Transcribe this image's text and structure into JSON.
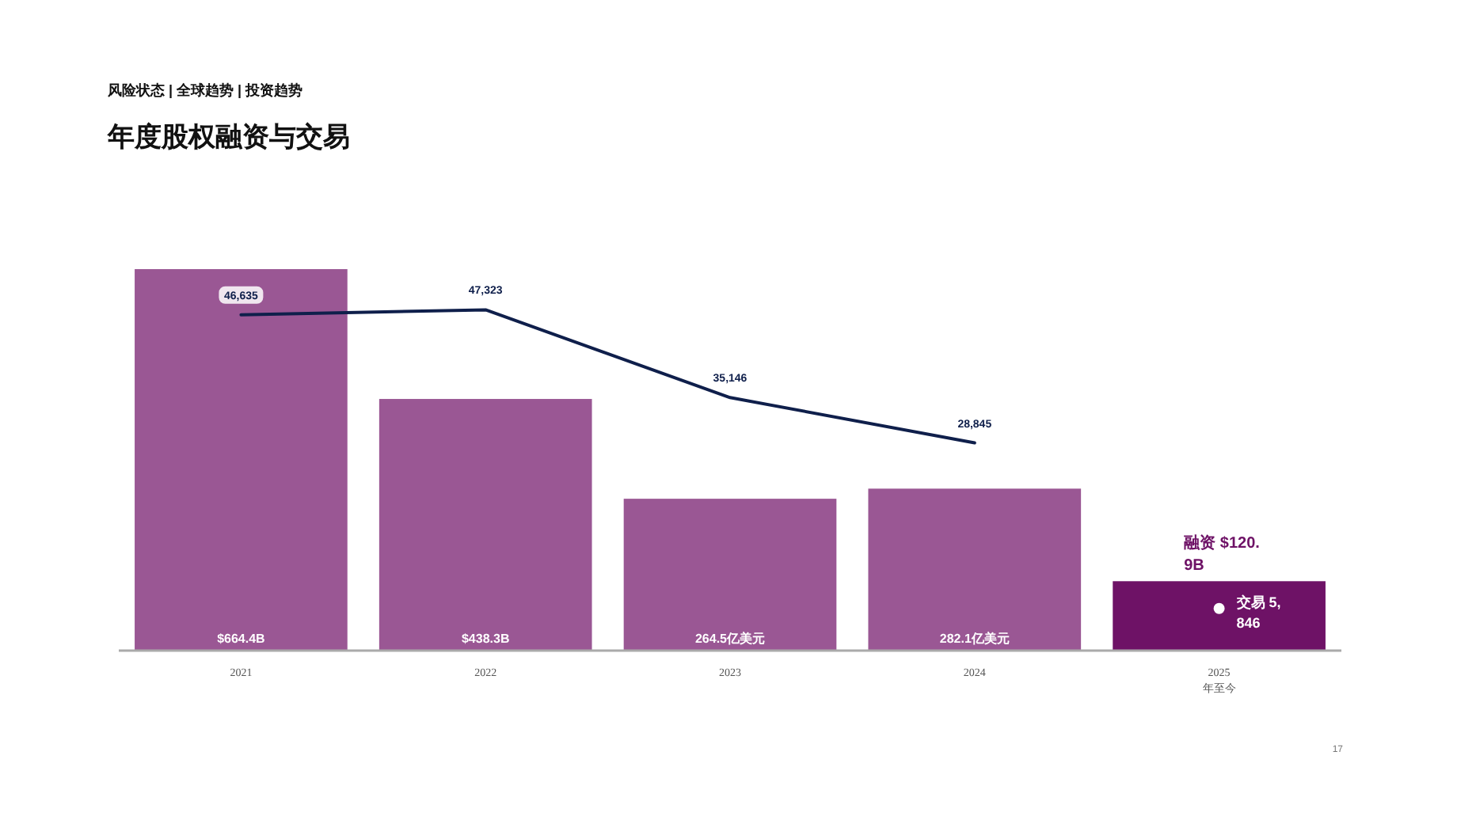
{
  "chart_data": {
    "type": "bar",
    "subtitle": "风险状态 | 全球趋势 | 投资趋势",
    "title": "年度股权融资与交易",
    "categories": [
      "2021",
      "2022",
      "2023",
      "2024",
      "2025 年至今"
    ],
    "values": [
      664.4,
      438.3,
      264.5,
      282.1,
      120.9
    ],
    "colors": [
      "#9a5794",
      "#9a5794",
      "#9a5794",
      "#9a5794",
      "#6e1266"
    ],
    "value_labels": [
      "$664.4B",
      "$438.3B",
      "264.5亿美元",
      "282.1亿美元",
      "融资 $120.9B"
    ],
    "series": [
      {
        "type": "line",
        "axis": "y2",
        "color": "#0f1f4b",
        "values": [
          46635,
          47323,
          35146,
          28845,
          null
        ],
        "value_labels": [
          "46,635",
          "47,323",
          "35,146",
          "28,845",
          null
        ]
      },
      {
        "type": "scatter",
        "axis": "y2",
        "color": "#ffffff",
        "x": [
          "2025 年至今"
        ],
        "values": [
          5846
        ],
        "value_labels": [
          "交易 5,846"
        ]
      }
    ],
    "tick_labels": "x",
    "annotations": [
      "17"
    ]
  }
}
